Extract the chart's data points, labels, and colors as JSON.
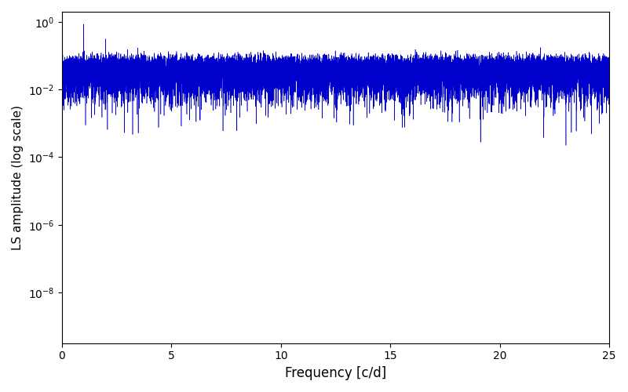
{
  "xlabel": "Frequency [c/d]",
  "ylabel": "LS amplitude (log scale)",
  "line_color": "#0000CC",
  "xlim": [
    0,
    25
  ],
  "ylim_bottom_exp": -9.5,
  "ylim_top_exp": 0.3,
  "freq_min": 0.005,
  "freq_max": 25.0,
  "n_points": 50000,
  "seed": 77,
  "figsize": [
    8.0,
    5.0
  ],
  "dpi": 100,
  "xticks": [
    0,
    5,
    10,
    15,
    20,
    25
  ]
}
